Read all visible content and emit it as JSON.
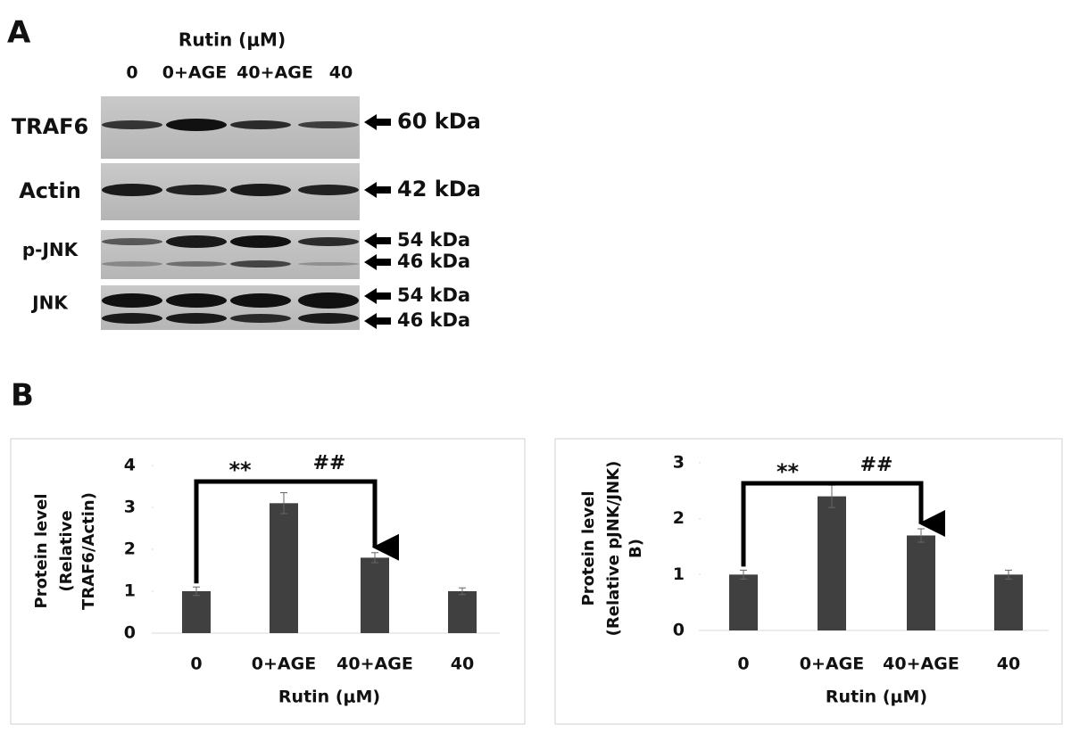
{
  "figure": {
    "panel_a": {
      "label": "A",
      "header": "Rutin (μM)",
      "lanes": [
        "0",
        "0+AGE",
        "40+AGE",
        "40"
      ],
      "rows": [
        {
          "label": "TRAF6",
          "markers": [
            "60 kDa"
          ]
        },
        {
          "label": "Actin",
          "markers": [
            "42 kDa"
          ]
        },
        {
          "label": "p-JNK",
          "markers": [
            "54 kDa",
            "46 kDa"
          ]
        },
        {
          "label": "JNK",
          "markers": [
            "54 kDa",
            "46 kDa"
          ]
        }
      ]
    },
    "panel_b": {
      "label": "B"
    }
  },
  "chart_data": [
    {
      "type": "bar",
      "ylabel": [
        "Protein level",
        "(Relative",
        "TRAF6/Actin)"
      ],
      "xlabel": "Rutin (μM)",
      "categories": [
        "0",
        "0+AGE",
        "40+AGE",
        "40"
      ],
      "values": [
        1.0,
        3.1,
        1.8,
        1.0
      ],
      "errors": [
        0.1,
        0.25,
        0.12,
        0.08
      ],
      "color": "#404040",
      "ylim": [
        0,
        4
      ],
      "yticks": [
        0,
        1,
        2,
        3,
        4
      ],
      "annotations": [
        "**",
        "##"
      ]
    },
    {
      "type": "bar",
      "ylabel": [
        "Protein level",
        "(Relative pJNK/JNK)",
        "B)"
      ],
      "xlabel": "Rutin (μM)",
      "categories": [
        "0",
        "0+AGE",
        "40+AGE",
        "40"
      ],
      "values": [
        1.0,
        2.4,
        1.7,
        1.0
      ],
      "errors": [
        0.08,
        0.2,
        0.12,
        0.08
      ],
      "color": "#404040",
      "ylim": [
        0,
        3
      ],
      "yticks": [
        0,
        1,
        2,
        3
      ],
      "annotations": [
        "**",
        "##"
      ]
    }
  ]
}
